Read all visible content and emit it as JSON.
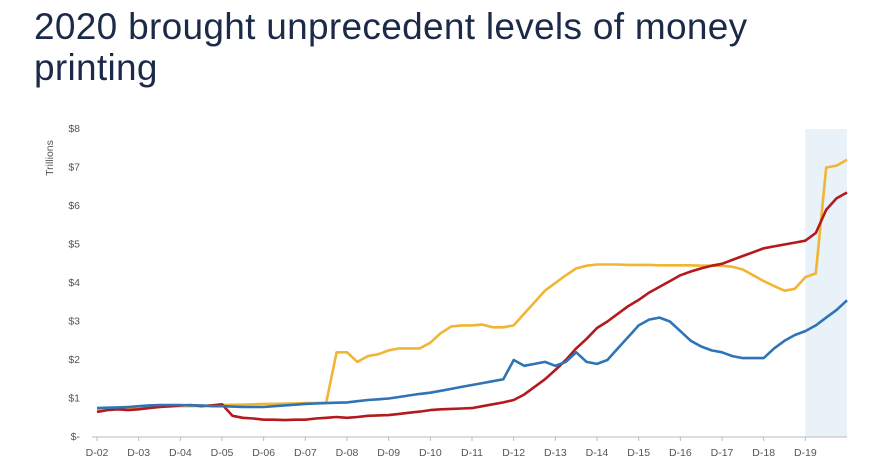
{
  "chart_data": {
    "type": "line",
    "title": "2020 brought unprecedent levels of money printing",
    "y_label": "Trillions",
    "categories": [
      "D-02",
      null,
      null,
      null,
      "D-03",
      null,
      null,
      null,
      "D-04",
      null,
      null,
      null,
      "D-05",
      null,
      null,
      null,
      "D-06",
      null,
      null,
      null,
      "D-07",
      null,
      null,
      null,
      "D-08",
      null,
      null,
      null,
      "D-09",
      null,
      null,
      null,
      "D-10",
      null,
      null,
      null,
      "D-11",
      null,
      null,
      null,
      "D-12",
      null,
      null,
      null,
      "D-13",
      null,
      null,
      null,
      "D-14",
      null,
      null,
      null,
      "D-15",
      null,
      null,
      null,
      "D-16",
      null,
      null,
      null,
      "D-17",
      null,
      null,
      null,
      "D-18",
      null,
      null,
      null,
      "D-19",
      null,
      null,
      null,
      null
    ],
    "series": [
      {
        "color": "#f2b533",
        "values": [
          0.72,
          0.73,
          0.73,
          0.74,
          0.75,
          0.77,
          0.78,
          0.79,
          0.8,
          0.8,
          0.81,
          0.82,
          0.83,
          0.84,
          0.84,
          0.85,
          0.86,
          0.86,
          0.87,
          0.87,
          0.88,
          0.88,
          0.89,
          2.2,
          2.2,
          1.95,
          2.1,
          2.15,
          2.25,
          2.3,
          2.3,
          2.3,
          2.45,
          2.7,
          2.87,
          2.9,
          2.9,
          2.92,
          2.85,
          2.85,
          2.9,
          3.2,
          3.5,
          3.8,
          4.0,
          4.2,
          4.38,
          4.45,
          4.48,
          4.48,
          4.48,
          4.47,
          4.47,
          4.47,
          4.46,
          4.46,
          4.46,
          4.46,
          4.45,
          4.45,
          4.45,
          4.42,
          4.35,
          4.2,
          4.05,
          3.92,
          3.8,
          3.85,
          4.15,
          4.25,
          7.0,
          7.05,
          7.2
        ]
      },
      {
        "color": "#b3191d",
        "values": [
          0.65,
          0.7,
          0.72,
          0.7,
          0.72,
          0.75,
          0.78,
          0.8,
          0.82,
          0.83,
          0.8,
          0.82,
          0.85,
          0.55,
          0.5,
          0.48,
          0.45,
          0.45,
          0.44,
          0.45,
          0.45,
          0.48,
          0.5,
          0.52,
          0.5,
          0.52,
          0.55,
          0.56,
          0.57,
          0.6,
          0.63,
          0.66,
          0.7,
          0.72,
          0.73,
          0.74,
          0.75,
          0.8,
          0.85,
          0.9,
          0.96,
          1.1,
          1.3,
          1.5,
          1.74,
          2.0,
          2.3,
          2.55,
          2.83,
          3.0,
          3.2,
          3.4,
          3.56,
          3.75,
          3.9,
          4.05,
          4.2,
          4.3,
          4.38,
          4.45,
          4.5,
          4.6,
          4.7,
          4.8,
          4.9,
          4.95,
          5.0,
          5.05,
          5.1,
          5.3,
          5.9,
          6.2,
          6.35
        ]
      },
      {
        "color": "#2f74b5",
        "values": [
          0.75,
          0.76,
          0.77,
          0.78,
          0.8,
          0.82,
          0.83,
          0.83,
          0.83,
          0.82,
          0.82,
          0.8,
          0.8,
          0.79,
          0.78,
          0.78,
          0.78,
          0.8,
          0.82,
          0.84,
          0.86,
          0.87,
          0.88,
          0.89,
          0.9,
          0.93,
          0.96,
          0.98,
          1.0,
          1.04,
          1.08,
          1.12,
          1.15,
          1.2,
          1.25,
          1.3,
          1.35,
          1.4,
          1.45,
          1.5,
          2.0,
          1.85,
          1.9,
          1.95,
          1.85,
          1.95,
          2.2,
          1.95,
          1.9,
          2.0,
          2.3,
          2.6,
          2.9,
          3.05,
          3.1,
          3.0,
          2.75,
          2.5,
          2.35,
          2.25,
          2.2,
          2.1,
          2.05,
          2.05,
          2.05,
          2.3,
          2.5,
          2.65,
          2.75,
          2.9,
          3.1,
          3.3,
          3.55
        ]
      }
    ],
    "ylim": [
      0,
      8
    ],
    "yticks": [
      {
        "value": 0,
        "label": "$-"
      },
      {
        "value": 1,
        "label": "$1"
      },
      {
        "value": 2,
        "label": "$2"
      },
      {
        "value": 3,
        "label": "$3"
      },
      {
        "value": 4,
        "label": "$4"
      },
      {
        "value": 5,
        "label": "$5"
      },
      {
        "value": 6,
        "label": "$6"
      },
      {
        "value": 7,
        "label": "$7"
      },
      {
        "value": 8,
        "label": "$8"
      }
    ]
  }
}
